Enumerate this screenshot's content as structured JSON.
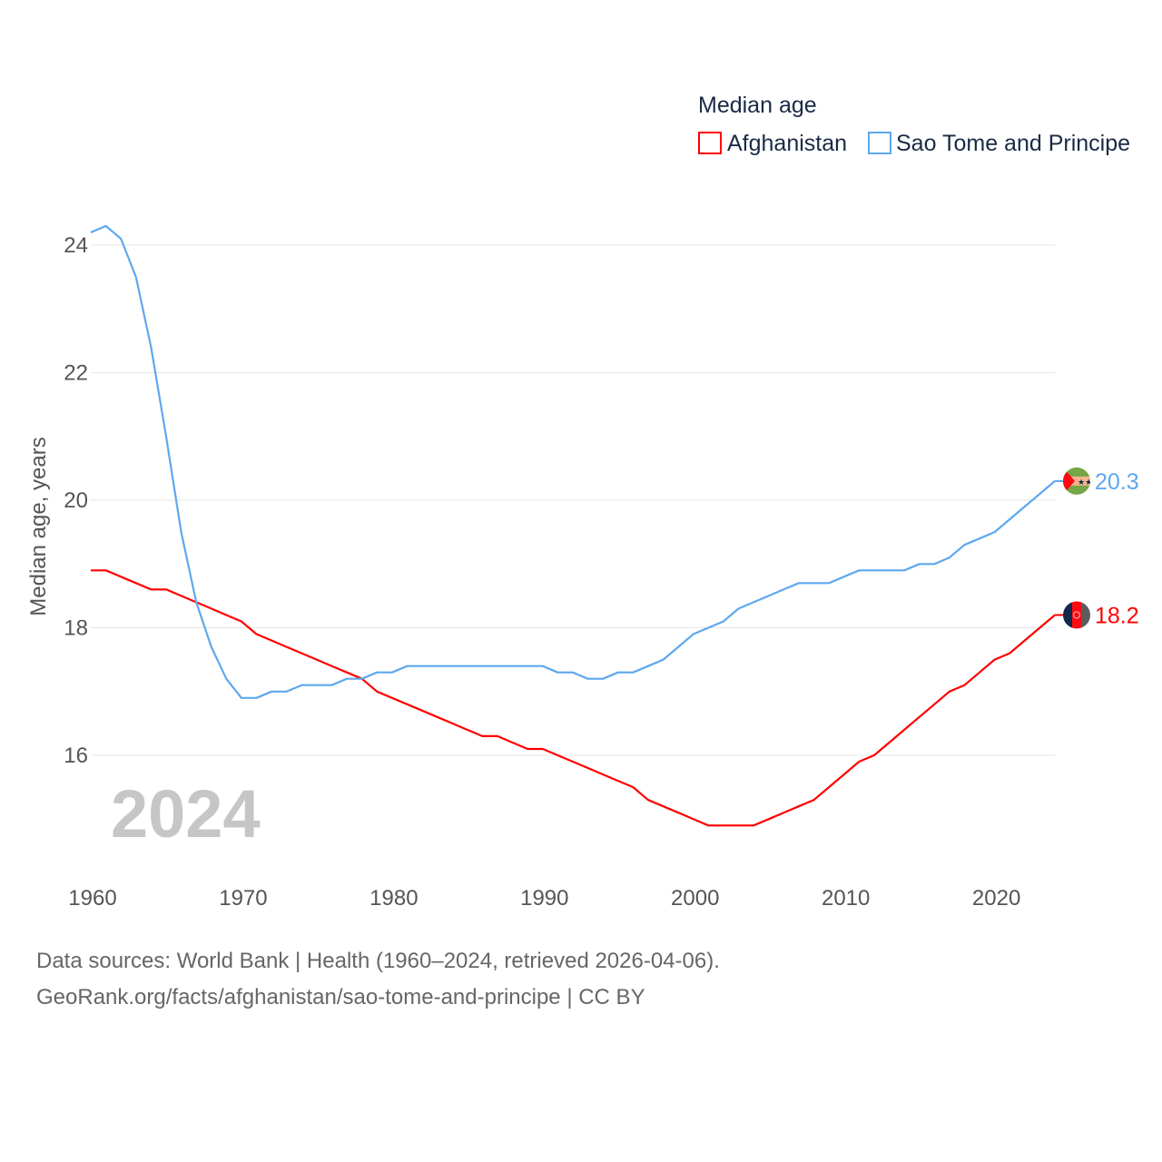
{
  "chart_data": {
    "type": "line",
    "title": "",
    "legend_title": "Median age",
    "legend_position": "top-right",
    "xlabel": "",
    "ylabel": "Median age, years",
    "xlim": [
      1960,
      2024
    ],
    "ylim": [
      14.4,
      24.4
    ],
    "yticks": [
      "16",
      "18",
      "20",
      "22",
      "24"
    ],
    "xticks": [
      "1960",
      "1970",
      "1980",
      "1990",
      "2000",
      "2010",
      "2020"
    ],
    "grid": true,
    "year_watermark": "2024",
    "x": [
      1960,
      1961,
      1962,
      1963,
      1964,
      1965,
      1966,
      1967,
      1968,
      1969,
      1970,
      1971,
      1972,
      1973,
      1974,
      1975,
      1976,
      1977,
      1978,
      1979,
      1980,
      1981,
      1982,
      1983,
      1984,
      1985,
      1986,
      1987,
      1988,
      1989,
      1990,
      1991,
      1992,
      1993,
      1994,
      1995,
      1996,
      1997,
      1998,
      1999,
      2000,
      2001,
      2002,
      2003,
      2004,
      2005,
      2006,
      2007,
      2008,
      2009,
      2010,
      2011,
      2012,
      2013,
      2014,
      2015,
      2016,
      2017,
      2018,
      2019,
      2020,
      2021,
      2022,
      2023,
      2024
    ],
    "series": [
      {
        "name": "Afghanistan",
        "color": "#ff0000",
        "end_label": "18.2",
        "values": [
          18.9,
          18.9,
          18.8,
          18.7,
          18.6,
          18.6,
          18.5,
          18.4,
          18.3,
          18.2,
          18.1,
          17.9,
          17.8,
          17.7,
          17.6,
          17.5,
          17.4,
          17.3,
          17.2,
          17.0,
          16.9,
          16.8,
          16.7,
          16.6,
          16.5,
          16.4,
          16.3,
          16.3,
          16.2,
          16.1,
          16.1,
          16.0,
          15.9,
          15.8,
          15.7,
          15.6,
          15.5,
          15.3,
          15.2,
          15.1,
          15.0,
          14.9,
          14.9,
          14.9,
          14.9,
          15.0,
          15.1,
          15.2,
          15.3,
          15.5,
          15.7,
          15.9,
          16.0,
          16.2,
          16.4,
          16.6,
          16.8,
          17.0,
          17.1,
          17.3,
          17.5,
          17.6,
          17.8,
          18.0,
          18.2
        ]
      },
      {
        "name": "Sao Tome and Principe",
        "color": "#5ea8ee",
        "end_label": "20.3",
        "values": [
          24.2,
          24.3,
          24.1,
          23.5,
          22.4,
          21.0,
          19.5,
          18.4,
          17.7,
          17.2,
          16.9,
          16.9,
          17.0,
          17.0,
          17.1,
          17.1,
          17.1,
          17.2,
          17.2,
          17.3,
          17.3,
          17.4,
          17.4,
          17.4,
          17.4,
          17.4,
          17.4,
          17.4,
          17.4,
          17.4,
          17.4,
          17.3,
          17.3,
          17.2,
          17.2,
          17.3,
          17.3,
          17.4,
          17.5,
          17.7,
          17.9,
          18.0,
          18.1,
          18.3,
          18.4,
          18.5,
          18.6,
          18.7,
          18.7,
          18.7,
          18.8,
          18.9,
          18.9,
          18.9,
          18.9,
          19.0,
          19.0,
          19.1,
          19.3,
          19.4,
          19.5,
          19.7,
          19.9,
          20.1,
          20.3
        ]
      }
    ]
  },
  "footer": {
    "line1": "Data sources: World Bank | Health (1960–2024, retrieved 2026-04-06).",
    "line2": "GeoRank.org/facts/afghanistan/sao-tome-and-principe | CC BY"
  }
}
